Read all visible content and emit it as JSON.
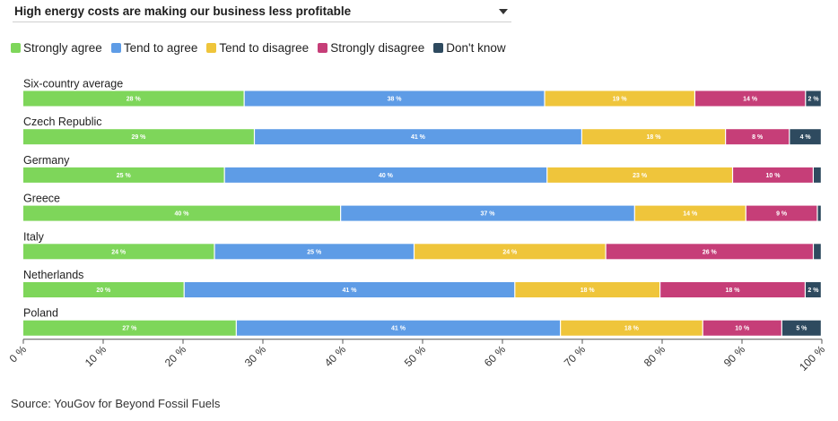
{
  "header": {
    "dropdown_title": "High energy costs are making our business less profitable"
  },
  "legend": [
    {
      "label": "Strongly agree",
      "color": "#7ed65a"
    },
    {
      "label": "Tend to agree",
      "color": "#5e9ce6"
    },
    {
      "label": "Tend to disagree",
      "color": "#efc53b"
    },
    {
      "label": "Strongly disagree",
      "color": "#c63e78"
    },
    {
      "label": "Don't know",
      "color": "#2e4a5f"
    }
  ],
  "chart_data": {
    "type": "bar",
    "orientation": "horizontal",
    "stacked": true,
    "categories": [
      "Six-country average",
      "Czech Republic",
      "Germany",
      "Greece",
      "Italy",
      "Netherlands",
      "Poland"
    ],
    "series": [
      {
        "name": "Strongly agree",
        "color": "#7ed65a",
        "values": [
          28,
          29,
          25,
          40,
          24,
          20,
          27
        ],
        "labels": [
          "28 %",
          "29 %",
          "25 %",
          "40 %",
          "24 %",
          "20 %",
          "27 %"
        ]
      },
      {
        "name": "Tend to agree",
        "color": "#5e9ce6",
        "values": [
          38,
          41,
          40,
          37,
          25,
          41,
          41
        ],
        "labels": [
          "38 %",
          "41 %",
          "40 %",
          "37 %",
          "25 %",
          "41 %",
          "41 %"
        ]
      },
      {
        "name": "Tend to disagree",
        "color": "#efc53b",
        "values": [
          19,
          18,
          23,
          14,
          24,
          18,
          18
        ],
        "labels": [
          "19 %",
          "18 %",
          "23 %",
          "14 %",
          "24 %",
          "18 %",
          "18 %"
        ]
      },
      {
        "name": "Strongly disagree",
        "color": "#c63e78",
        "values": [
          14,
          8,
          10,
          9,
          26,
          18,
          10
        ],
        "labels": [
          "14 %",
          "8 %",
          "10 %",
          "9 %",
          "26 %",
          "18 %",
          "10 %"
        ]
      },
      {
        "name": "Don't know",
        "color": "#2e4a5f",
        "values": [
          2,
          4,
          1,
          0.5,
          1,
          2,
          5
        ],
        "labels": [
          "2 %",
          "4 %",
          "",
          "",
          "",
          "2 %",
          "5 %"
        ]
      }
    ],
    "x_ticks": [
      "0 %",
      "10 %",
      "20 %",
      "30 %",
      "40 %",
      "50 %",
      "60 %",
      "70 %",
      "80 %",
      "90 %",
      "100 %"
    ],
    "xlim": [
      0,
      100
    ],
    "grid": false,
    "legend_position": "top-left"
  },
  "source": "Source: YouGov for Beyond Fossil Fuels"
}
